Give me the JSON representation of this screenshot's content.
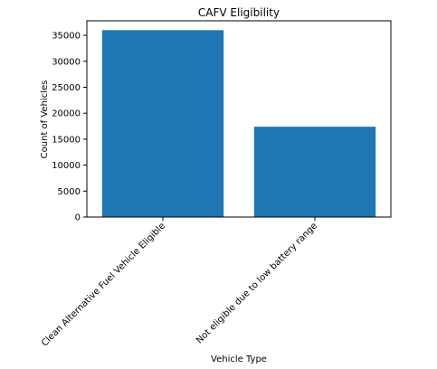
{
  "chart_data": {
    "type": "bar",
    "title": "CAFV Eligibility",
    "xlabel": "Vehicle Type",
    "ylabel": "Count of Vehicles",
    "categories": [
      "Clean Alternative Fuel Vehicle Eligible",
      "Not eligible due to low battery range"
    ],
    "values": [
      36000,
      17400
    ],
    "ylim": [
      0,
      37800
    ],
    "yticks": [
      0,
      5000,
      10000,
      15000,
      20000,
      25000,
      30000,
      35000
    ],
    "ytick_labels": [
      "0",
      "5000",
      "10000",
      "15000",
      "20000",
      "25000",
      "30000",
      "35000"
    ],
    "bar_color": "#1f77b4",
    "grid": false,
    "legend": "none"
  }
}
